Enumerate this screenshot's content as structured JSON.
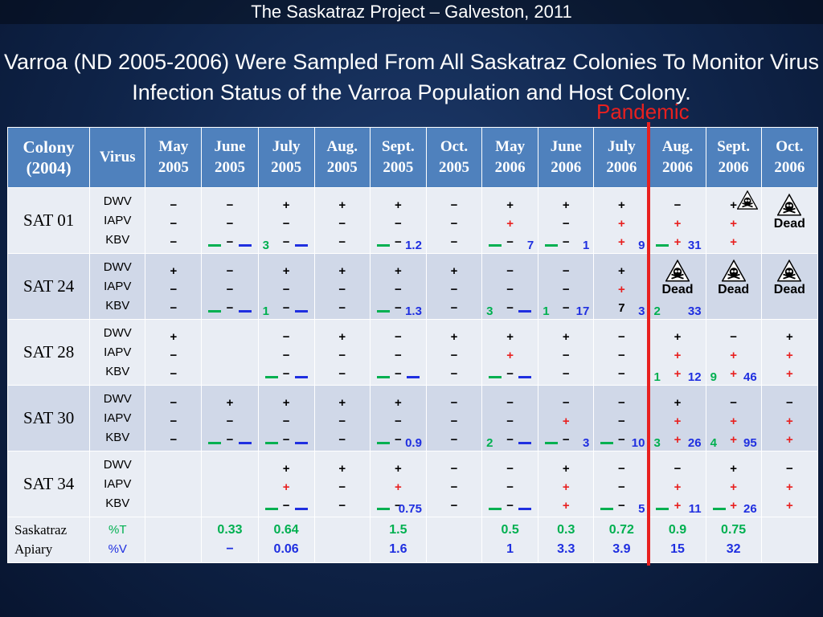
{
  "top_title": "The Saskatraz Project – Galveston, 2011",
  "heading": "Varroa (ND 2005-2006) Were Sampled From All Saskatraz Colonies To Monitor Virus Infection Status of the Varroa Population and Host Colony.",
  "pandemic_label": "Pandemic",
  "colors": {
    "accent_red": "#e8201f",
    "header_blue": "#4f81bd",
    "green": "#00b050",
    "blue": "#1f2fe0"
  },
  "table": {
    "header": {
      "colony_line1": "Colony",
      "colony_line2": "(2004)",
      "virus": "Virus",
      "months": [
        {
          "m": "May",
          "y": "2005"
        },
        {
          "m": "June",
          "y": "2005"
        },
        {
          "m": "July",
          "y": "2005"
        },
        {
          "m": "Aug.",
          "y": "2005"
        },
        {
          "m": "Sept.",
          "y": "2005"
        },
        {
          "m": "Oct.",
          "y": "2005"
        },
        {
          "m": "May",
          "y": "2006"
        },
        {
          "m": "June",
          "y": "2006"
        },
        {
          "m": "July",
          "y": "2006"
        },
        {
          "m": "Aug.",
          "y": "2006"
        },
        {
          "m": "Sept.",
          "y": "2006"
        },
        {
          "m": "Oct.",
          "y": "2006"
        }
      ]
    },
    "virus_labels": [
      "DWV",
      "IAPV",
      "KBV"
    ],
    "dead_label": "Dead",
    "rows": [
      {
        "colony": "SAT 01",
        "cells": [
          {
            "v": [
              "−",
              "−",
              "−"
            ]
          },
          {
            "v": [
              "−",
              "−",
              "−"
            ],
            "g": "",
            "b": ""
          },
          {
            "v": [
              "+",
              "−",
              "−"
            ],
            "g": "3",
            "b": ""
          },
          {
            "v": [
              "+",
              "−",
              "−"
            ]
          },
          {
            "v": [
              "+",
              "−",
              "−"
            ],
            "g": "",
            "b": "1.2"
          },
          {
            "v": [
              "−",
              "−",
              "−"
            ]
          },
          {
            "v": [
              "+",
              "+",
              "−"
            ],
            "r": [
              false,
              true,
              false
            ],
            "g": "",
            "b": "7"
          },
          {
            "v": [
              "+",
              "−",
              "−"
            ],
            "g": "",
            "b": "1"
          },
          {
            "v": [
              "+",
              "+",
              "+"
            ],
            "r": [
              false,
              true,
              true
            ],
            "b": "9"
          },
          {
            "v": [
              "−",
              "+",
              "+"
            ],
            "r": [
              false,
              true,
              true
            ],
            "g": "",
            "b": "31"
          },
          {
            "v": [
              "+",
              "+",
              "+"
            ],
            "r": [
              false,
              true,
              true
            ],
            "skull": true
          },
          {
            "dead": true
          }
        ]
      },
      {
        "colony": "SAT 24",
        "cells": [
          {
            "v": [
              "+",
              "−",
              "−"
            ]
          },
          {
            "v": [
              "−",
              "−",
              "−"
            ],
            "g": "",
            "b": ""
          },
          {
            "v": [
              "+",
              "−",
              "−"
            ],
            "g": "1",
            "b": ""
          },
          {
            "v": [
              "+",
              "−",
              "−"
            ]
          },
          {
            "v": [
              "+",
              "−",
              "−"
            ],
            "g": "",
            "b": "1.3"
          },
          {
            "v": [
              "+",
              "−",
              "−"
            ]
          },
          {
            "v": [
              "−",
              "−",
              "−"
            ],
            "g": "3",
            "b": ""
          },
          {
            "v": [
              "−",
              "−",
              "−"
            ],
            "g": "1",
            "b": "17"
          },
          {
            "v": [
              "+",
              "+",
              "7"
            ],
            "r": [
              false,
              true,
              false
            ],
            "b": "3"
          },
          {
            "dead": true,
            "g2": "2",
            "b2": "33"
          },
          {
            "dead": true
          },
          {
            "dead": true
          }
        ]
      },
      {
        "colony": "SAT 28",
        "cells": [
          {
            "v": [
              "+",
              "−",
              "−"
            ]
          },
          {
            "v": [
              "",
              "",
              ""
            ]
          },
          {
            "v": [
              "−",
              "−",
              "−"
            ],
            "g": "",
            "b": ""
          },
          {
            "v": [
              "+",
              "−",
              "−"
            ]
          },
          {
            "v": [
              "−",
              "−",
              "−"
            ],
            "g": "",
            "b": ""
          },
          {
            "v": [
              "+",
              "−",
              "−"
            ]
          },
          {
            "v": [
              "+",
              "+",
              "−"
            ],
            "r": [
              false,
              true,
              false
            ],
            "g": "",
            "b": ""
          },
          {
            "v": [
              "+",
              "−",
              "−"
            ]
          },
          {
            "v": [
              "−",
              "−",
              "−"
            ]
          },
          {
            "v": [
              "+",
              "+",
              "+"
            ],
            "r": [
              false,
              true,
              true
            ],
            "g": "1",
            "b": "12"
          },
          {
            "v": [
              "−",
              "+",
              "+"
            ],
            "r": [
              false,
              true,
              true
            ],
            "g": "9",
            "b": "46"
          },
          {
            "v": [
              "+",
              "+",
              "+"
            ],
            "r": [
              false,
              true,
              true
            ]
          }
        ]
      },
      {
        "colony": "SAT 30",
        "cells": [
          {
            "v": [
              "−",
              "−",
              "−"
            ]
          },
          {
            "v": [
              "+",
              "−",
              "−"
            ],
            "g": "",
            "b": ""
          },
          {
            "v": [
              "+",
              "−",
              "−"
            ],
            "g": "",
            "b": ""
          },
          {
            "v": [
              "+",
              "−",
              "−"
            ]
          },
          {
            "v": [
              "+",
              "−",
              "−"
            ],
            "g": "",
            "b": "0.9"
          },
          {
            "v": [
              "−",
              "−",
              "−"
            ]
          },
          {
            "v": [
              "−",
              "−",
              "−"
            ],
            "g": "2",
            "b": ""
          },
          {
            "v": [
              "−",
              "+",
              "−"
            ],
            "r": [
              false,
              true,
              false
            ],
            "g": "",
            "b": "3"
          },
          {
            "v": [
              "−",
              "−",
              "−"
            ],
            "g": "",
            "b": "10"
          },
          {
            "v": [
              "+",
              "+",
              "+"
            ],
            "r": [
              false,
              true,
              true
            ],
            "g": "3",
            "b": "26"
          },
          {
            "v": [
              "−",
              "+",
              "+"
            ],
            "r": [
              false,
              true,
              true
            ],
            "g": "4",
            "b": "95"
          },
          {
            "v": [
              "−",
              "+",
              "+"
            ],
            "r": [
              false,
              true,
              true
            ]
          }
        ]
      },
      {
        "colony": "SAT 34",
        "cells": [
          {
            "v": [
              "",
              "",
              ""
            ]
          },
          {
            "v": [
              "",
              "",
              ""
            ]
          },
          {
            "v": [
              "+",
              "+",
              "−"
            ],
            "r": [
              false,
              true,
              false
            ],
            "g": "",
            "b": ""
          },
          {
            "v": [
              "+",
              "−",
              "−"
            ]
          },
          {
            "v": [
              "+",
              "+",
              "−"
            ],
            "r": [
              false,
              true,
              false
            ],
            "g": "",
            "b": "0.75"
          },
          {
            "v": [
              "−",
              "−",
              "−"
            ]
          },
          {
            "v": [
              "−",
              "−",
              "−"
            ],
            "g": "",
            "b": ""
          },
          {
            "v": [
              "+",
              "+",
              "+"
            ],
            "r": [
              false,
              true,
              true
            ]
          },
          {
            "v": [
              "−",
              "−",
              "−"
            ],
            "g": "",
            "b": "5"
          },
          {
            "v": [
              "−",
              "+",
              "+"
            ],
            "r": [
              false,
              true,
              true
            ],
            "g": "",
            "b": "11"
          },
          {
            "v": [
              "+",
              "+",
              "+"
            ],
            "r": [
              false,
              true,
              true
            ],
            "g": "",
            "b": "26"
          },
          {
            "v": [
              "−",
              "+",
              "+"
            ],
            "r": [
              false,
              true,
              true
            ]
          }
        ]
      }
    ],
    "apiary": {
      "label_line1": "Saskatraz",
      "label_line2": "Apiary",
      "t_label": "%T",
      "v_label": "%V",
      "t": [
        "",
        "0.33",
        "0.64",
        "",
        "1.5",
        "",
        "0.5",
        "0.3",
        "0.72",
        "0.9",
        "0.75",
        ""
      ],
      "v": [
        "",
        "−",
        "0.06",
        "",
        "1.6",
        "",
        "1",
        "3.3",
        "3.9",
        "15",
        "32",
        ""
      ]
    }
  }
}
